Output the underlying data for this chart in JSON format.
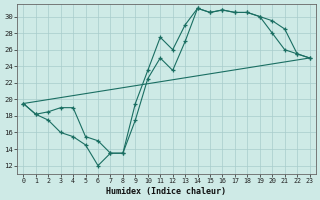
{
  "xlabel": "Humidex (Indice chaleur)",
  "background_color": "#ceeae6",
  "grid_color": "#a8cccc",
  "line_color": "#1a6e62",
  "xlim": [
    -0.5,
    23.5
  ],
  "ylim": [
    11,
    31.5
  ],
  "yticks": [
    12,
    14,
    16,
    18,
    20,
    22,
    24,
    26,
    28,
    30
  ],
  "xticks": [
    0,
    1,
    2,
    3,
    4,
    5,
    6,
    7,
    8,
    9,
    10,
    11,
    12,
    13,
    14,
    15,
    16,
    17,
    18,
    19,
    20,
    21,
    22,
    23
  ],
  "series": [
    {
      "x": [
        0,
        1,
        2,
        3,
        4,
        5,
        6,
        7,
        8,
        9,
        10,
        11,
        12,
        13,
        14,
        15,
        16,
        17,
        18,
        19,
        20,
        21,
        22,
        23
      ],
      "y": [
        19.5,
        18.2,
        18.5,
        19.0,
        19.0,
        15.5,
        15.0,
        13.5,
        13.5,
        19.5,
        23.5,
        27.5,
        26.0,
        29.0,
        31.0,
        30.5,
        30.8,
        30.5,
        30.5,
        30.0,
        28.0,
        26.0,
        25.5,
        25.0
      ],
      "marker": true
    },
    {
      "x": [
        0,
        1,
        2,
        3,
        4,
        5,
        6,
        7,
        8,
        9,
        10,
        11,
        12,
        13,
        14,
        15,
        16,
        17,
        18,
        19,
        20,
        21,
        22,
        23
      ],
      "y": [
        19.5,
        18.2,
        17.5,
        16.0,
        15.5,
        14.5,
        12.0,
        13.5,
        13.5,
        17.5,
        22.5,
        25.0,
        23.5,
        27.0,
        31.0,
        30.5,
        30.8,
        30.5,
        30.5,
        30.0,
        29.5,
        28.5,
        25.5,
        25.0
      ],
      "marker": true
    },
    {
      "x": [
        0,
        23
      ],
      "y": [
        19.5,
        25.0
      ],
      "marker": false
    }
  ]
}
